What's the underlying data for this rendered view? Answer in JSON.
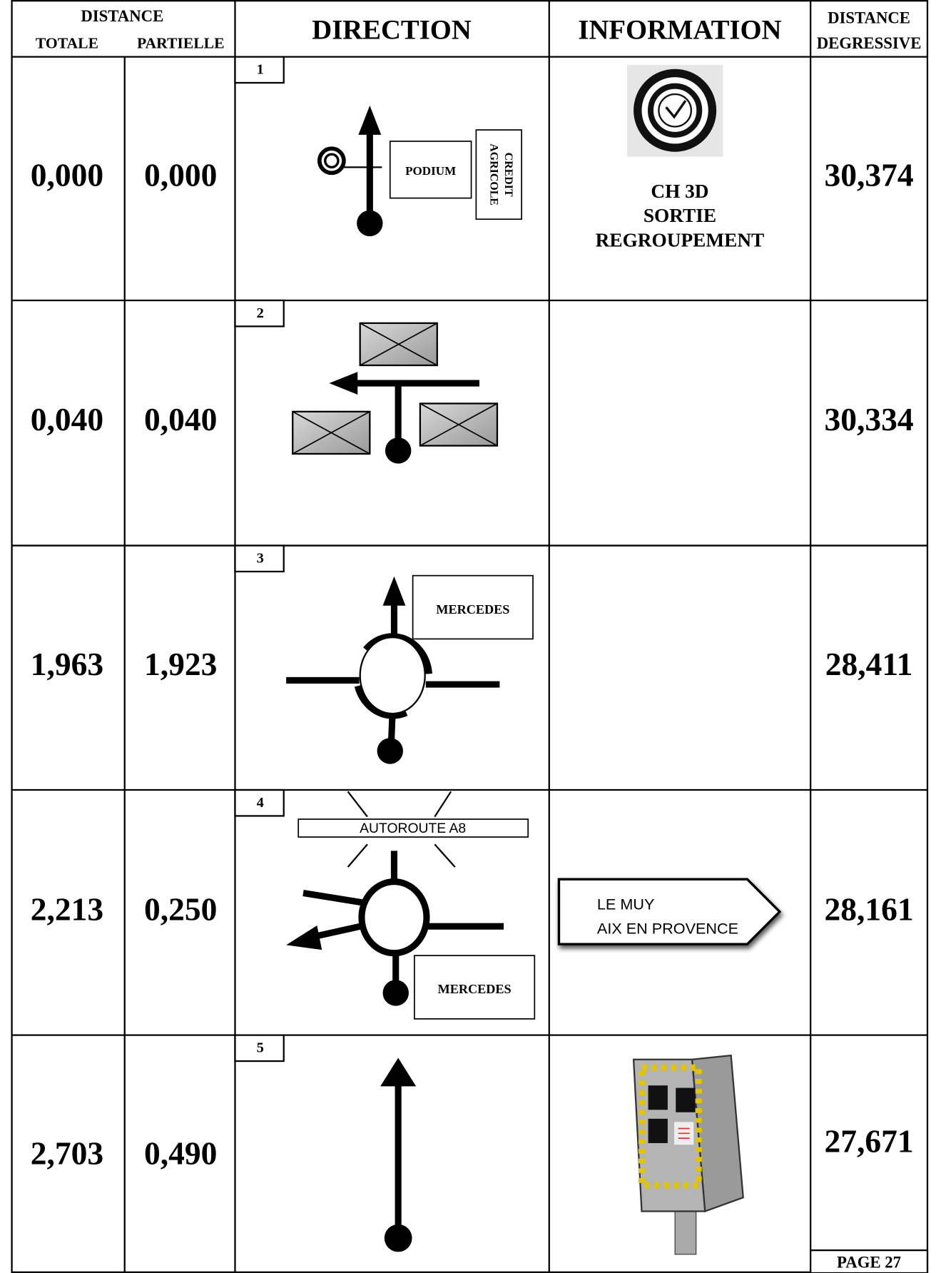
{
  "header": {
    "distance": "DISTANCE",
    "totale": "TOTALE",
    "partielle": "PARTIELLE",
    "direction": "DIRECTION",
    "information": "INFORMATION",
    "degressive": [
      "DISTANCE",
      "DEGRESSIVE"
    ]
  },
  "rows": [
    {
      "number": "1",
      "totale": "0,000",
      "partielle": "0,000",
      "degressive": "30,374",
      "direction_labels": [
        "PODIUM",
        "CREDIT",
        "AGRICOLE"
      ],
      "information": [
        "CH 3D",
        "SORTIE",
        "REGROUPEMENT"
      ]
    },
    {
      "number": "2",
      "totale": "0,040",
      "partielle": "0,040",
      "degressive": "30,334"
    },
    {
      "number": "3",
      "totale": "1,963",
      "partielle": "1,923",
      "degressive": "28,411",
      "direction_labels": [
        "MERCEDES"
      ]
    },
    {
      "number": "4",
      "totale": "2,213",
      "partielle": "0,250",
      "degressive": "28,161",
      "direction_labels": [
        "AUTOROUTE A8",
        "MERCEDES"
      ],
      "information": [
        "LE MUY",
        "AIX EN PROVENCE"
      ]
    },
    {
      "number": "5",
      "totale": "2,703",
      "partielle": "0,490",
      "degressive": "27,671"
    }
  ],
  "footer": {
    "page": "PAGE 27"
  }
}
